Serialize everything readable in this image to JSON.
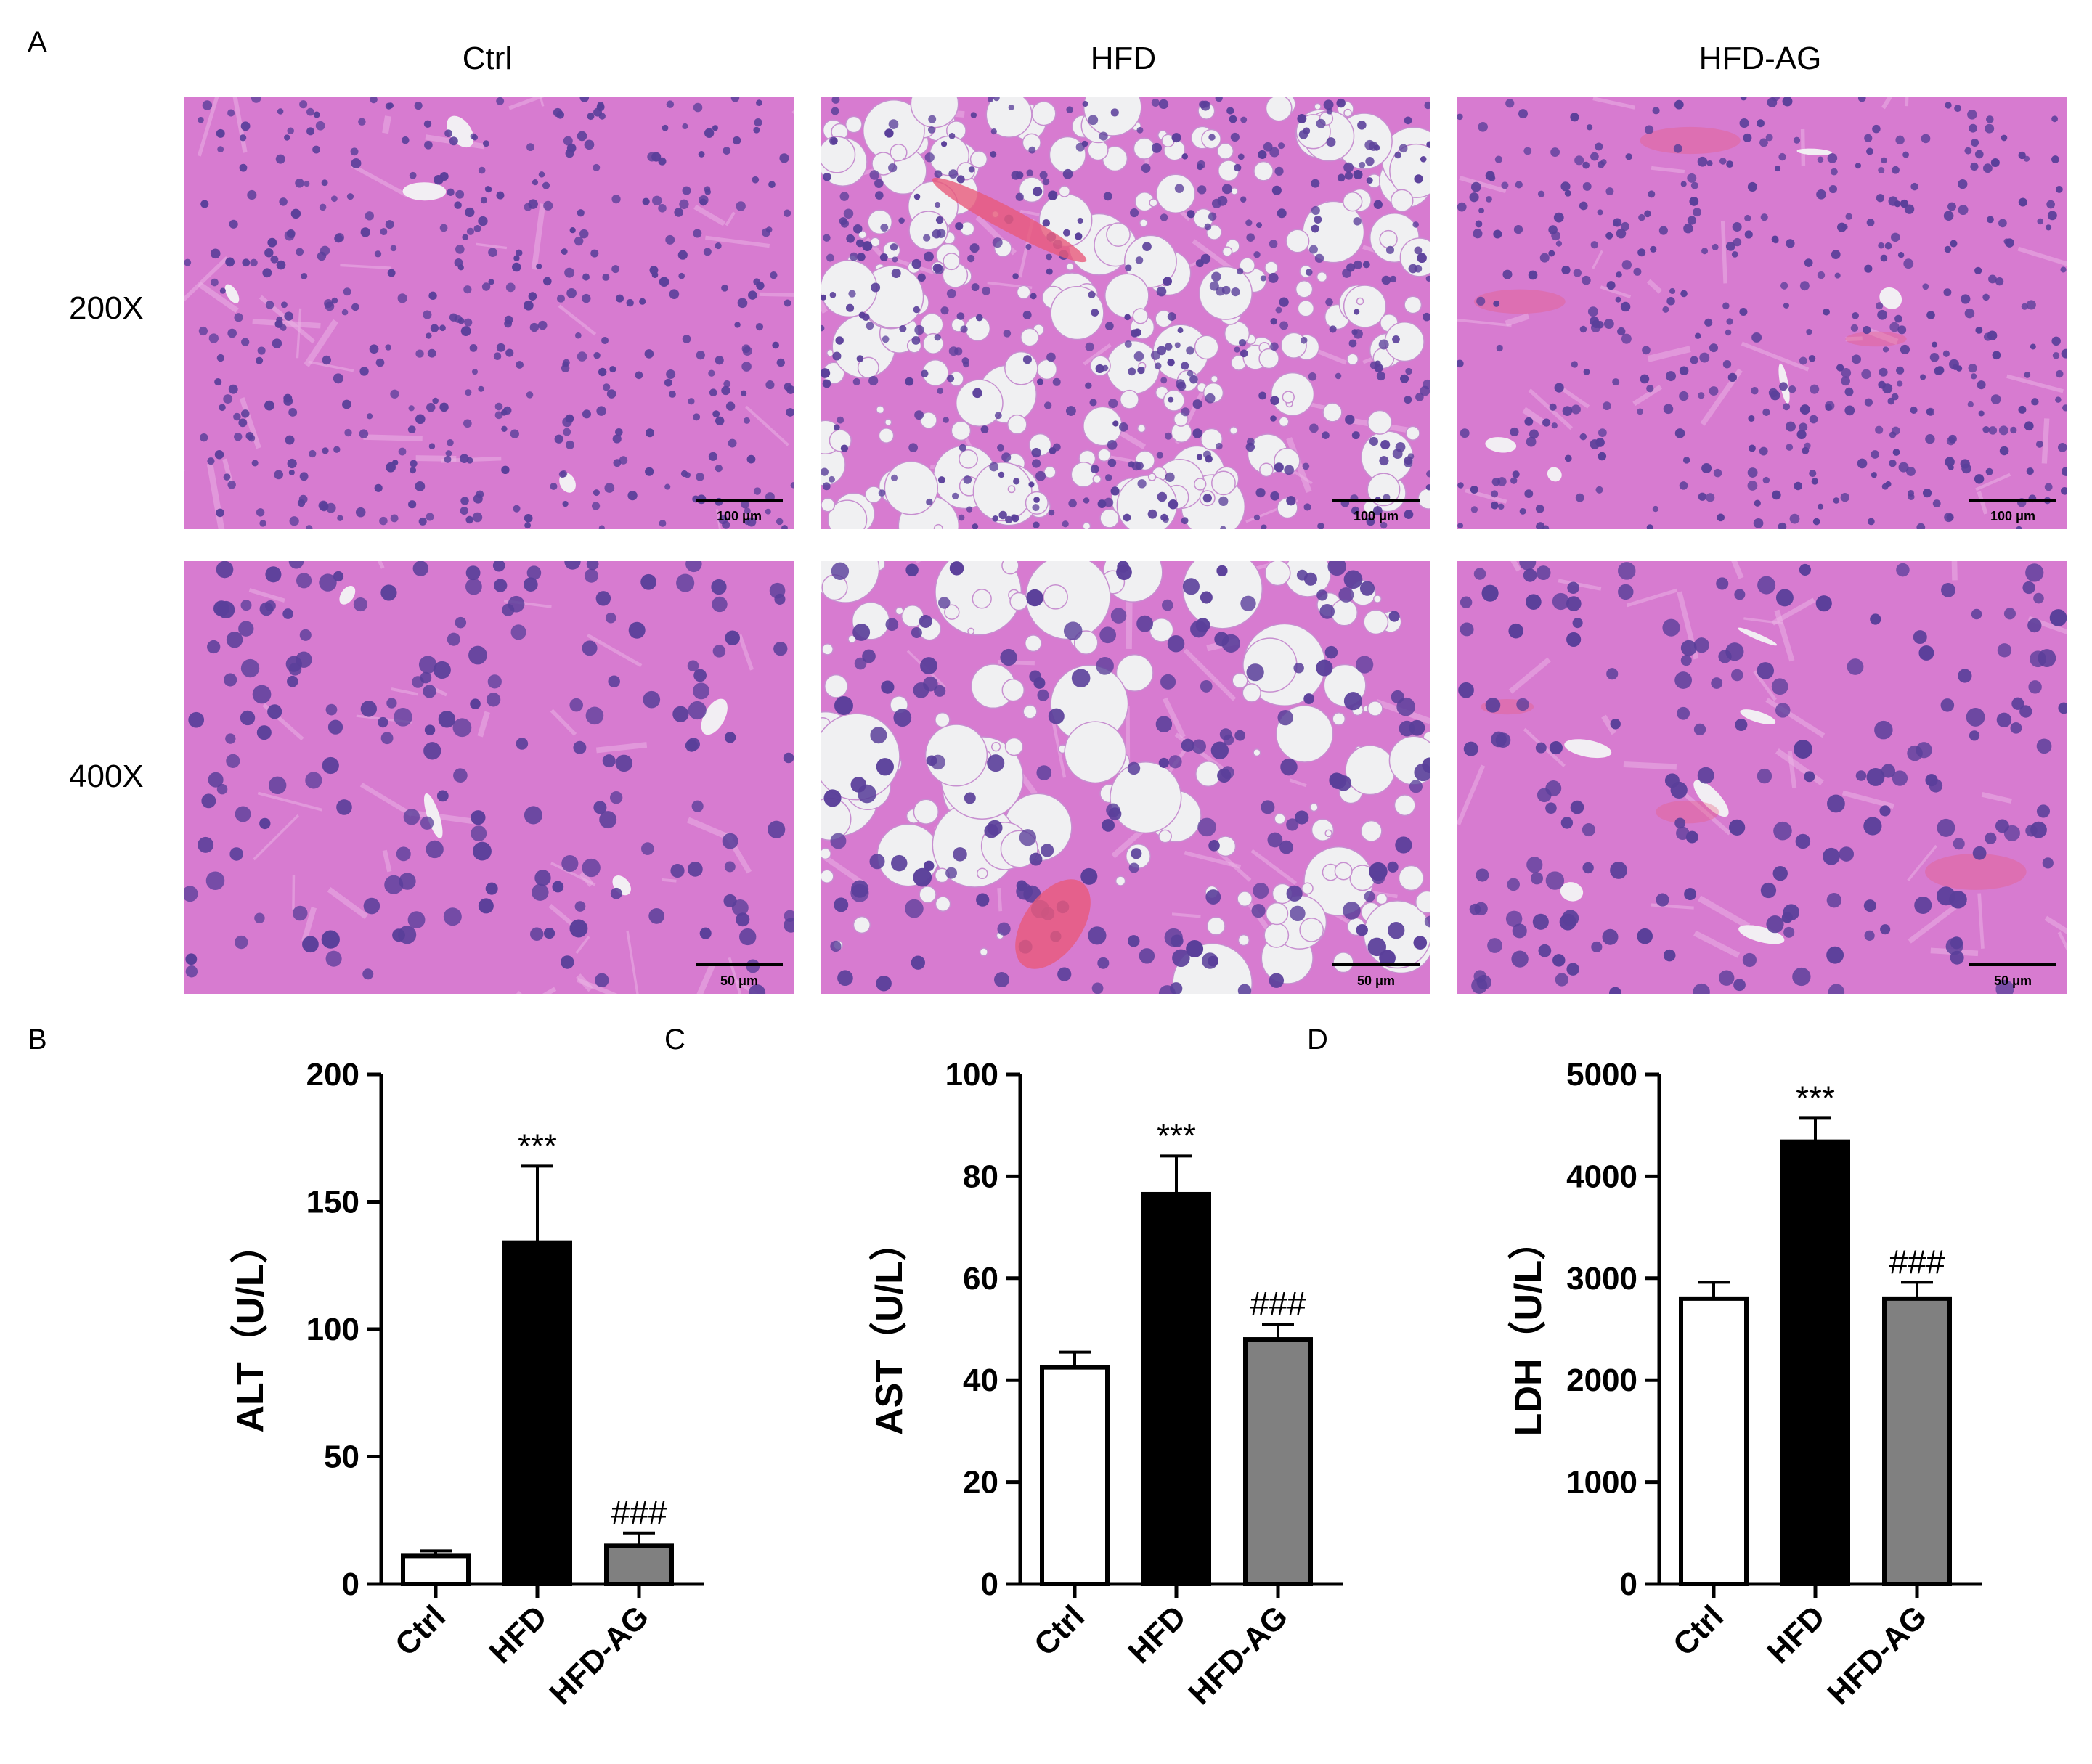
{
  "panels": {
    "a": "A",
    "b": "B",
    "c": "C",
    "d": "D"
  },
  "histology": {
    "columns": [
      "Ctrl",
      "HFD",
      "HFD-AG"
    ],
    "rows": [
      {
        "label": "200X",
        "scale_bar": "100 μm"
      },
      {
        "label": "400X",
        "scale_bar": "50 μm"
      }
    ],
    "colors": {
      "stain": "#d77bd0",
      "nuclei": "#5a3f9a",
      "lipid": "#f0f0f2",
      "rbc": "#e85a7a"
    }
  },
  "chart_data": [
    {
      "type": "bar",
      "categories": [
        "Ctrl",
        "HFD",
        "HFD-AG"
      ],
      "values": [
        11,
        134,
        15
      ],
      "errors": [
        2,
        30,
        5
      ],
      "annotations": [
        "",
        "***",
        "###"
      ],
      "ylabel": "ALT（U/L）",
      "ylim": [
        0,
        200
      ],
      "yticks": [
        0,
        50,
        100,
        150,
        200
      ],
      "colors": [
        "#ffffff",
        "#000000",
        "#808080"
      ]
    },
    {
      "type": "bar",
      "categories": [
        "Ctrl",
        "HFD",
        "HFD-AG"
      ],
      "values": [
        42.5,
        76.5,
        48
      ],
      "errors": [
        3,
        7.5,
        3
      ],
      "annotations": [
        "",
        "***",
        "###"
      ],
      "ylabel": "AST（U/L）",
      "ylim": [
        0,
        100
      ],
      "yticks": [
        0,
        20,
        40,
        60,
        80,
        100
      ],
      "colors": [
        "#ffffff",
        "#000000",
        "#808080"
      ]
    },
    {
      "type": "bar",
      "categories": [
        "Ctrl",
        "HFD",
        "HFD-AG"
      ],
      "values": [
        2800,
        4340,
        2800
      ],
      "errors": [
        160,
        230,
        160
      ],
      "annotations": [
        "",
        "***",
        "###"
      ],
      "ylabel": "LDH（U/L）",
      "ylim": [
        0,
        5000
      ],
      "yticks": [
        0,
        1000,
        2000,
        3000,
        4000,
        5000
      ],
      "colors": [
        "#ffffff",
        "#000000",
        "#808080"
      ]
    }
  ]
}
